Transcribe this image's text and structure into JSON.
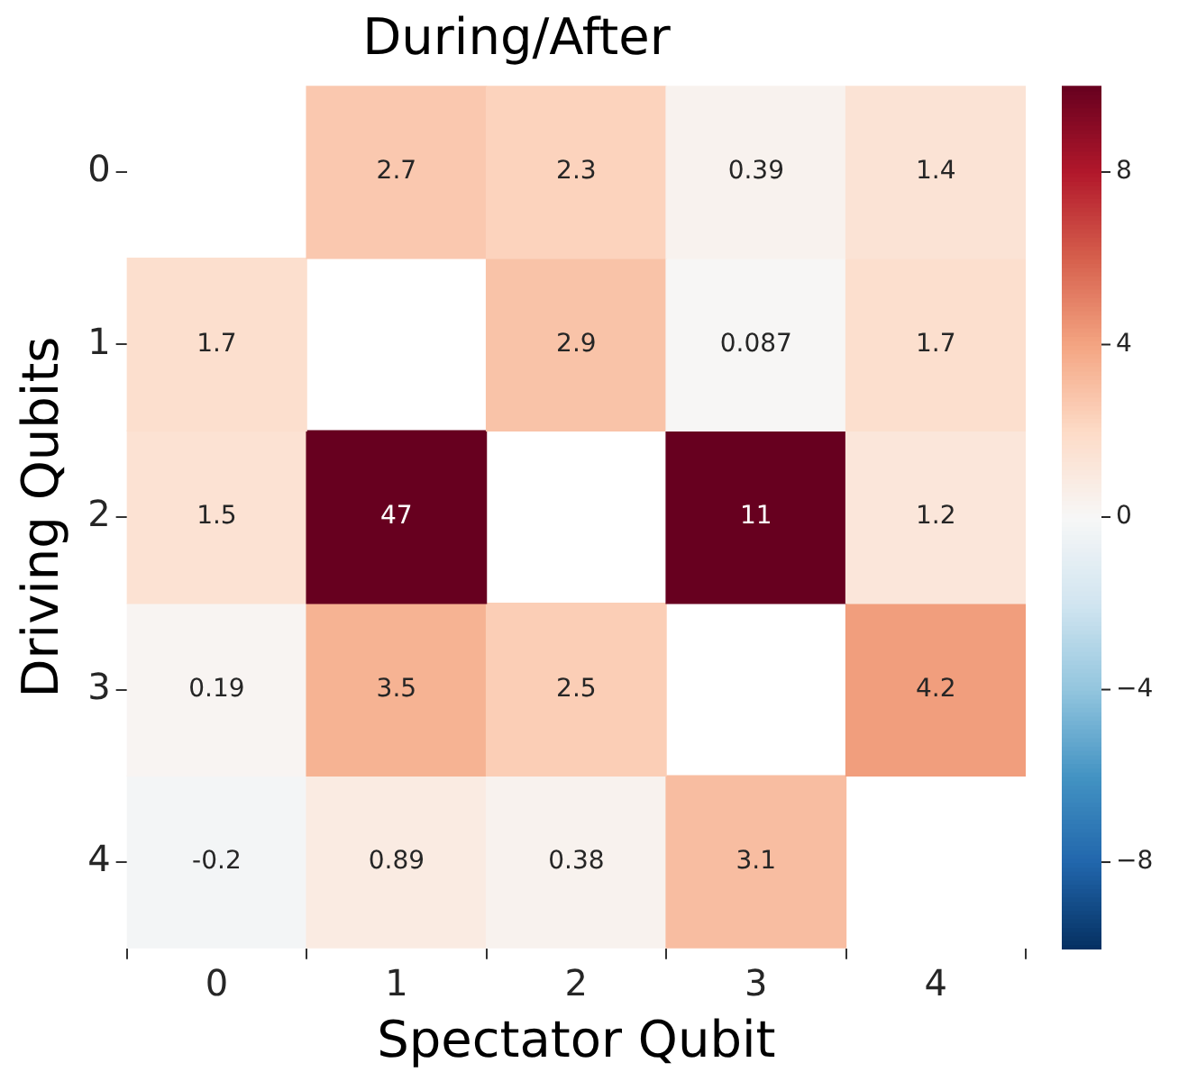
{
  "chart_data": {
    "type": "heatmap",
    "title": "During/After",
    "xlabel": "Spectator Qubit",
    "ylabel": "Driving Qubits",
    "categories": [
      "0",
      "1",
      "2",
      "3",
      "4"
    ],
    "y_categories": [
      "0",
      "1",
      "2",
      "3",
      "4"
    ],
    "cells": [
      [
        null,
        2.7,
        2.3,
        0.39,
        1.4
      ],
      [
        1.7,
        null,
        2.9,
        0.087,
        1.7
      ],
      [
        1.5,
        47,
        null,
        11,
        1.2
      ],
      [
        0.19,
        3.5,
        2.5,
        null,
        4.2
      ],
      [
        -0.2,
        0.89,
        0.38,
        3.1,
        null
      ]
    ],
    "clim": [
      -10,
      10
    ],
    "cticks": [
      -8,
      -4,
      0,
      4,
      8
    ],
    "data_labels": true
  }
}
